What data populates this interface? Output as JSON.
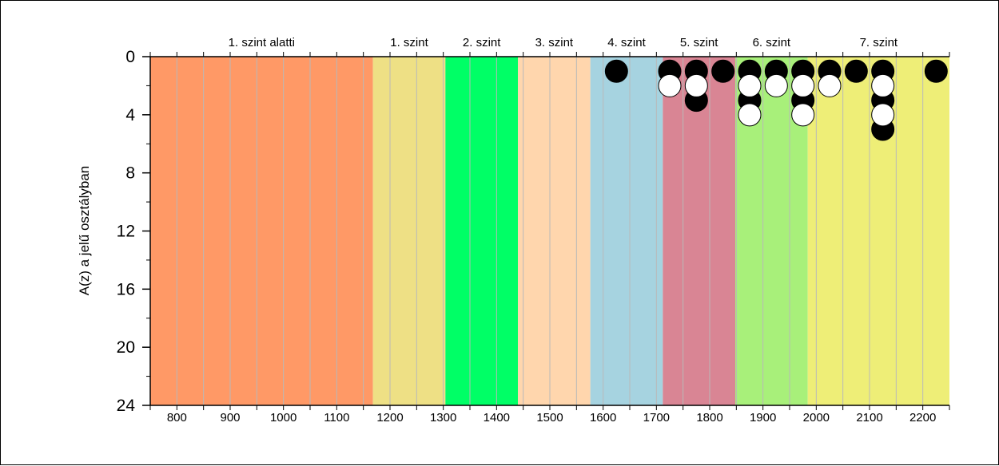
{
  "chart_data": {
    "type": "scatter",
    "ylabel": "A(z) a jelű osztályban",
    "xlim": [
      750,
      2250
    ],
    "ylim": [
      0,
      24
    ],
    "y_inverted": true,
    "x_ticks": [
      800,
      900,
      1000,
      1100,
      1200,
      1300,
      1400,
      1500,
      1600,
      1700,
      1800,
      1900,
      2000,
      2100,
      2200
    ],
    "x_minor_step": 50,
    "y_ticks": [
      0,
      4,
      8,
      12,
      16,
      20,
      24
    ],
    "bands": [
      {
        "label": "1. szint alatti",
        "from": 750,
        "to": 1168,
        "color": "#FF9966"
      },
      {
        "label": "1. szint",
        "from": 1168,
        "to": 1304,
        "color": "#EEE085"
      },
      {
        "label": "2. szint",
        "from": 1304,
        "to": 1440,
        "color": "#00FF66"
      },
      {
        "label": "3. szint",
        "from": 1440,
        "to": 1576,
        "color": "#FFD6AD"
      },
      {
        "label": "4. szint",
        "from": 1576,
        "to": 1712,
        "color": "#A6D3E0"
      },
      {
        "label": "5. szint",
        "from": 1712,
        "to": 1848,
        "color": "#D98594"
      },
      {
        "label": "6. szint",
        "from": 1848,
        "to": 1984,
        "color": "#A8F07A"
      },
      {
        "label": "7. szint",
        "from": 1984,
        "to": 2250,
        "color": "#EEEE77"
      }
    ],
    "series": [
      {
        "fill": "#000000",
        "points": [
          {
            "x": 1625,
            "y": 1
          },
          {
            "x": 1725,
            "y": 1
          },
          {
            "x": 1775,
            "y": 1
          },
          {
            "x": 1775,
            "y": 3
          },
          {
            "x": 1825,
            "y": 1
          },
          {
            "x": 1875,
            "y": 1
          },
          {
            "x": 1875,
            "y": 3
          },
          {
            "x": 1925,
            "y": 1
          },
          {
            "x": 1975,
            "y": 1
          },
          {
            "x": 1975,
            "y": 3
          },
          {
            "x": 2025,
            "y": 1
          },
          {
            "x": 2075,
            "y": 1
          },
          {
            "x": 2125,
            "y": 1
          },
          {
            "x": 2125,
            "y": 3
          },
          {
            "x": 2125,
            "y": 5
          },
          {
            "x": 2225,
            "y": 1
          }
        ]
      },
      {
        "fill": "#FFFFFF",
        "points": [
          {
            "x": 1725,
            "y": 2
          },
          {
            "x": 1775,
            "y": 2
          },
          {
            "x": 1875,
            "y": 2
          },
          {
            "x": 1875,
            "y": 4
          },
          {
            "x": 1925,
            "y": 2
          },
          {
            "x": 1975,
            "y": 2
          },
          {
            "x": 1975,
            "y": 4
          },
          {
            "x": 2025,
            "y": 2
          },
          {
            "x": 2125,
            "y": 2
          },
          {
            "x": 2125,
            "y": 4
          }
        ]
      }
    ]
  }
}
